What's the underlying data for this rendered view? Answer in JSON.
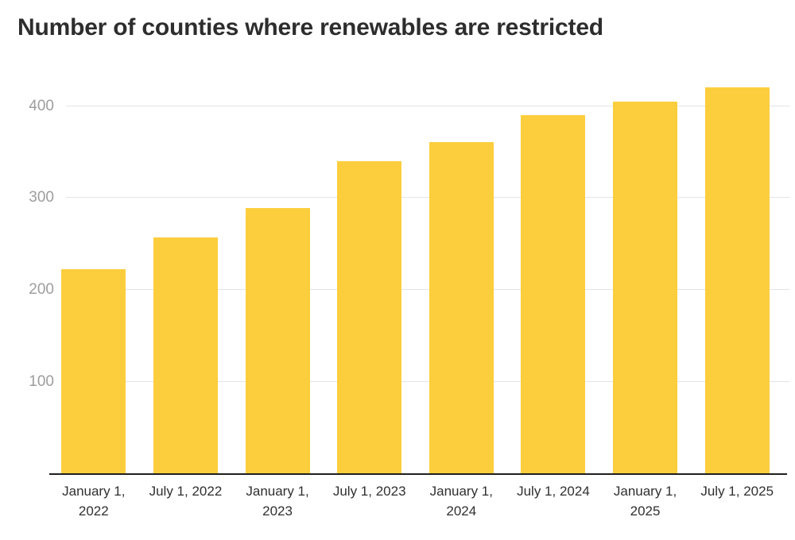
{
  "title": "Number of counties where renewables are restricted",
  "chart_data": {
    "type": "bar",
    "title": "Number of counties where renewables are restricted",
    "categories": [
      "January 1,\n2022",
      "July 1, 2022",
      "January 1,\n2023",
      "July 1, 2023",
      "January 1,\n2024",
      "July 1, 2024",
      "January 1,\n2025",
      "July 1, 2025"
    ],
    "values": [
      223,
      257,
      289,
      340,
      361,
      390,
      405,
      420
    ],
    "yticks": [
      100,
      200,
      300,
      400
    ],
    "ylim": [
      0,
      435
    ],
    "xlabel": "",
    "ylabel": "",
    "grid": "horizontal",
    "legend": "none",
    "bar_color": "#fcce3d",
    "gridline_color": "#e4e4e4",
    "axis_line_color": "#1f1f1f",
    "ytick_color": "#9d9d9d",
    "xtick_color": "#303030",
    "title_color": "#2d2d2d",
    "background_color": "#ffffff"
  }
}
